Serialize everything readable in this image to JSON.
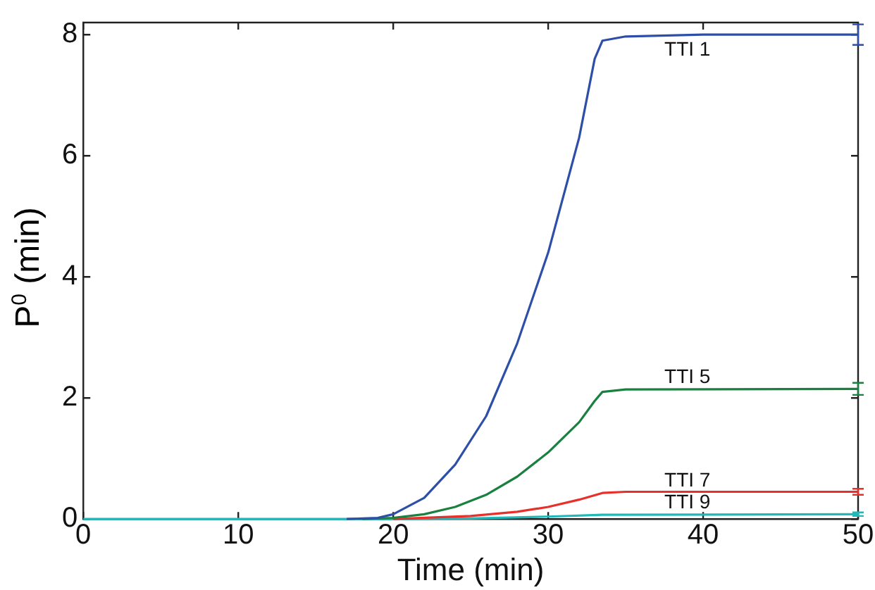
{
  "chart_data": {
    "type": "line",
    "xlabel": "Time (min)",
    "ylabel": "P$^{0}$ (min)",
    "xlim": [
      0,
      50
    ],
    "xticks": [
      0,
      10,
      20,
      30,
      40,
      50
    ],
    "ylim": [
      0,
      8.2
    ],
    "yticks": [
      0,
      2,
      4,
      6,
      8
    ],
    "grid": false,
    "legend": false,
    "marker": "none",
    "line_style": "solid",
    "series": [
      {
        "name": "TTI 1",
        "color": "#2e4fa8",
        "x": [
          17,
          19,
          20,
          22,
          24,
          26,
          28,
          30,
          32,
          33,
          33.5,
          35,
          40,
          50
        ],
        "values": [
          0,
          0.02,
          0.08,
          0.35,
          0.9,
          1.7,
          2.9,
          4.4,
          6.3,
          7.6,
          7.9,
          7.97,
          8.0,
          8.0
        ],
        "errors": [
          null,
          null,
          null,
          null,
          null,
          null,
          null,
          null,
          null,
          null,
          null,
          null,
          null,
          0.17
        ]
      },
      {
        "name": "TTI 5",
        "color": "#1a8040",
        "x": [
          18,
          20,
          22,
          24,
          26,
          28,
          30,
          32,
          33,
          33.5,
          35,
          50
        ],
        "values": [
          0,
          0.02,
          0.08,
          0.2,
          0.4,
          0.7,
          1.1,
          1.6,
          1.95,
          2.1,
          2.14,
          2.15
        ],
        "errors": [
          null,
          null,
          null,
          null,
          null,
          null,
          null,
          null,
          null,
          null,
          null,
          0.1
        ]
      },
      {
        "name": "TTI 7",
        "color": "#e8302a",
        "x": [
          20,
          25,
          28,
          30,
          32,
          33.5,
          35,
          50
        ],
        "values": [
          0,
          0.05,
          0.12,
          0.2,
          0.32,
          0.43,
          0.45,
          0.45
        ],
        "errors": [
          null,
          null,
          null,
          null,
          null,
          null,
          null,
          0.05
        ]
      },
      {
        "name": "TTI 9",
        "color": "#20b8b8",
        "x": [
          0,
          20,
          25,
          30,
          33.5,
          50
        ],
        "values": [
          0,
          0,
          0.01,
          0.04,
          0.07,
          0.08
        ],
        "errors": [
          null,
          null,
          null,
          null,
          null,
          0.03
        ]
      }
    ]
  }
}
